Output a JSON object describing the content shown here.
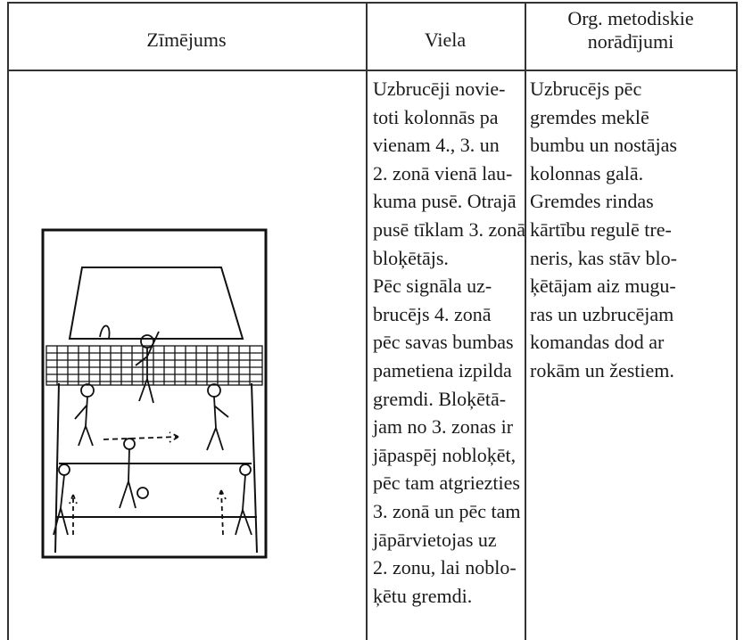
{
  "table": {
    "header": [
      [
        "Zīmējums"
      ],
      [
        "Viela"
      ],
      [
        "Org. metodiskie",
        "norādījumi"
      ]
    ],
    "body": {
      "viela": [
        "Uzbrucēji novie-",
        "toti kolonnās pa",
        "vienam 4., 3. un",
        "2. zonā vienā lau-",
        "kuma pusē. Otrajā",
        "pusē tīklam 3. zonā",
        "bloķētājs.",
        "Pēc signāla uz-",
        "brucējs 4. zonā",
        "pēc savas bumbas",
        "pametiena izpilda",
        "gremdi. Bloķētā-",
        "jam no 3. zonas ir",
        "jāpaspēj nobloķēt,",
        "pēc tam atgriezties",
        "3. zonā un pēc tam",
        "jāpārvietojas uz",
        "2. zonu, lai noblo-",
        "ķētu gremdi."
      ],
      "notes": [
        "Uzbrucējs pēc",
        "gremdes meklē",
        "bumbu un nostājas",
        "kolonnas galā.",
        "Gremdes rindas",
        "kārtību regulē tre-",
        "neris, kas stāv blo-",
        "ķētājam aiz mugu-",
        "ras un uzbrucējam",
        "komandas dod ar",
        "rokām un žestiem."
      ]
    }
  }
}
